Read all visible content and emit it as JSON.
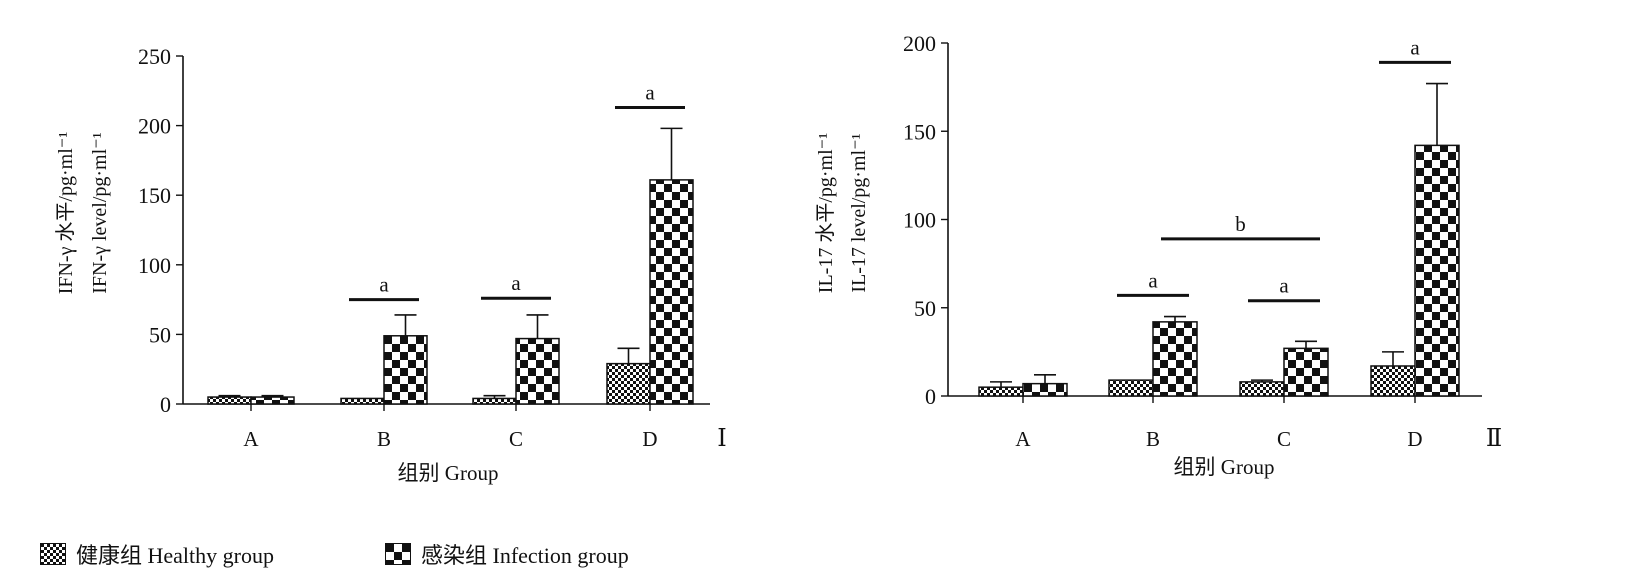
{
  "chart_data": [
    {
      "type": "bar",
      "panel_label": "Ⅰ",
      "ylabel_line1": "IFN-γ 水平/pg·ml⁻¹",
      "ylabel_line2": "IFN-γ  level/pg·ml⁻¹",
      "xlabel": "组别  Group",
      "categories": [
        "A",
        "B",
        "C",
        "D"
      ],
      "ylim": [
        0,
        250
      ],
      "yticks": [
        0,
        50,
        100,
        150,
        200,
        250
      ],
      "series": [
        {
          "name": "健康组 Healthy group",
          "values": [
            5,
            4,
            4,
            29
          ],
          "errors": [
            1,
            0,
            2,
            11
          ]
        },
        {
          "name": "感染组 Infection group",
          "values": [
            5,
            49,
            47,
            161
          ],
          "errors": [
            1,
            15,
            17,
            37
          ]
        }
      ],
      "annotations": [
        {
          "text": "a",
          "level": 75,
          "from": [
            "B",
            0
          ],
          "to": [
            "B",
            1
          ]
        },
        {
          "text": "a",
          "level": 76,
          "from": [
            "C",
            0
          ],
          "to": [
            "C",
            1
          ]
        },
        {
          "text": "a",
          "level": 213,
          "from": [
            "D",
            0
          ],
          "to": [
            "D",
            1
          ]
        }
      ]
    },
    {
      "type": "bar",
      "panel_label": "Ⅱ",
      "ylabel_line1": "IL-17 水平/pg·ml⁻¹",
      "ylabel_line2": "IL-17  level/pg·ml⁻¹",
      "xlabel": "组别  Group",
      "categories": [
        "A",
        "B",
        "C",
        "D"
      ],
      "ylim": [
        0,
        200
      ],
      "yticks": [
        0,
        50,
        100,
        150,
        200
      ],
      "series": [
        {
          "name": "健康组 Healthy group",
          "values": [
            5,
            9,
            8,
            17
          ],
          "errors": [
            3,
            0,
            1,
            8
          ]
        },
        {
          "name": "感染组 Infection group",
          "values": [
            7,
            42,
            27,
            142
          ],
          "errors": [
            5,
            3,
            4,
            35
          ]
        }
      ],
      "annotations": [
        {
          "text": "a",
          "level": 57,
          "from": [
            "B",
            0
          ],
          "to": [
            "B",
            1
          ]
        },
        {
          "text": "b",
          "level": 89,
          "from": [
            "B",
            1
          ],
          "to": [
            "C",
            1
          ]
        },
        {
          "text": "a",
          "level": 54,
          "from": [
            "C",
            0
          ],
          "to": [
            "C",
            1
          ]
        },
        {
          "text": "a",
          "level": 189,
          "from": [
            "D",
            0
          ],
          "to": [
            "D",
            1
          ]
        }
      ]
    }
  ],
  "legend": {
    "healthy": "健康组 Healthy group",
    "infection": "感染组 Infection group"
  }
}
